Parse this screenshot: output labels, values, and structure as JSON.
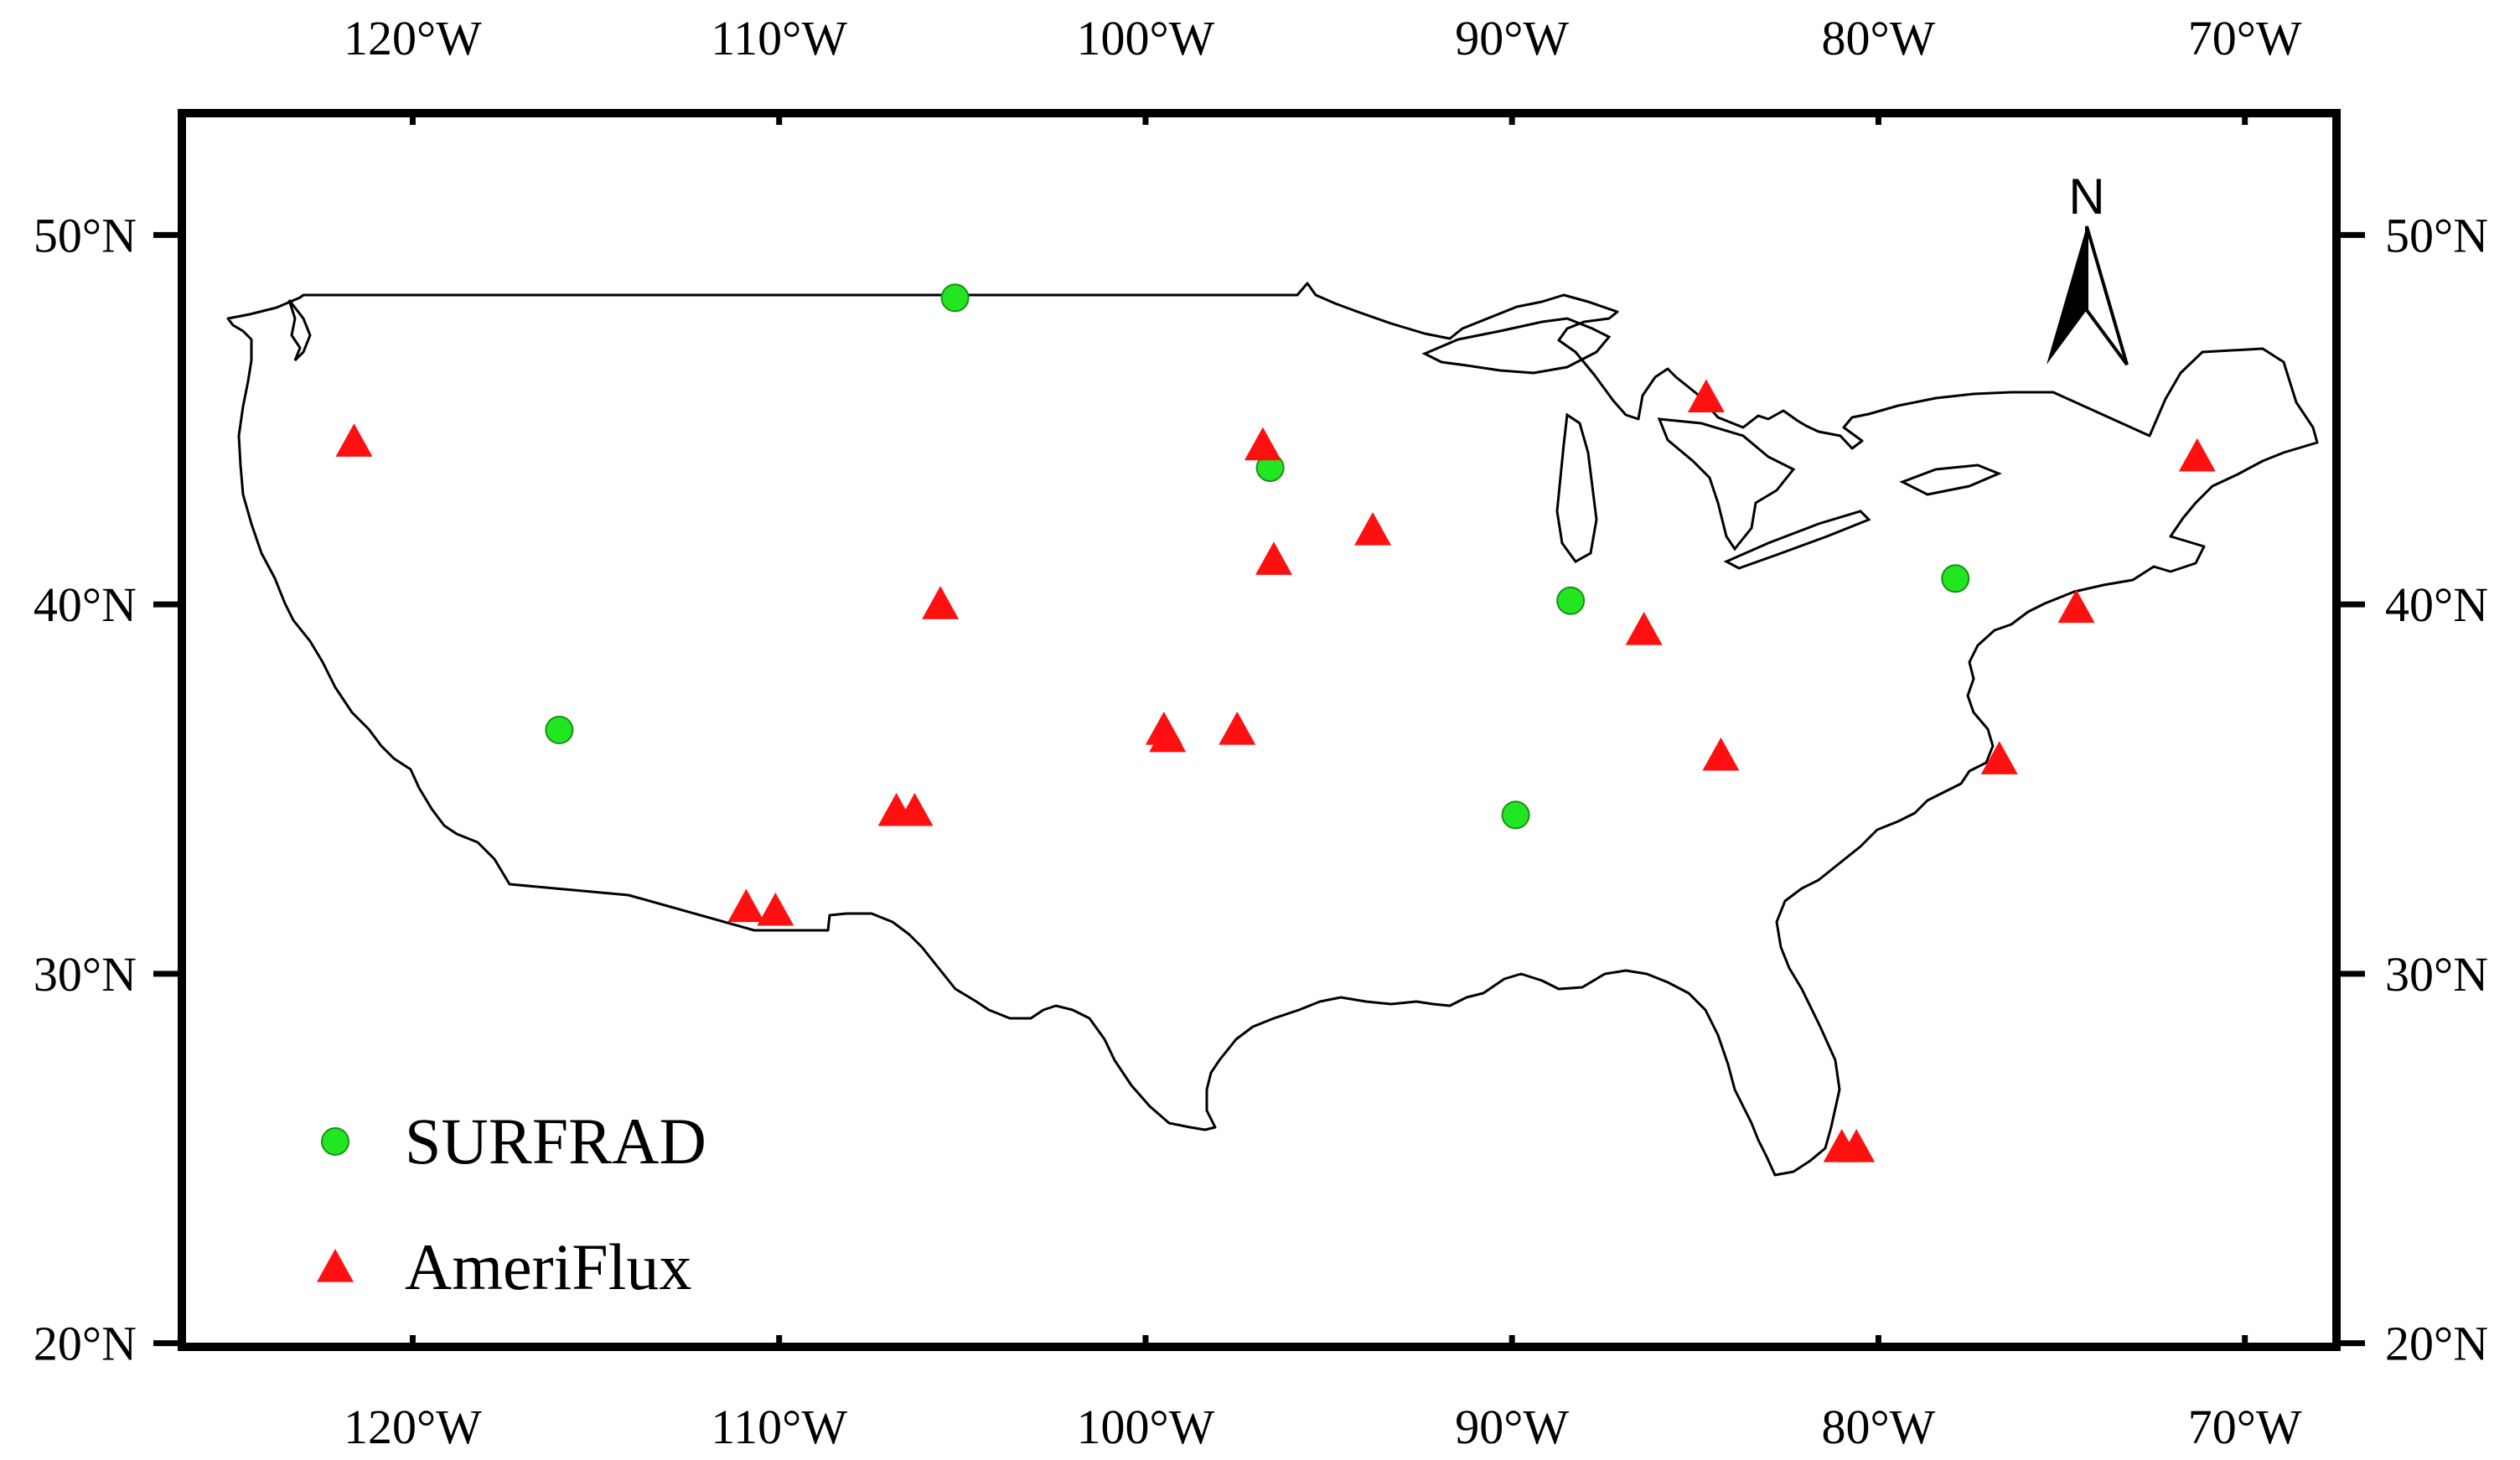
{
  "map": {
    "x_axis": {
      "ticks": [
        {
          "value": -120,
          "label": "120°W"
        },
        {
          "value": -110,
          "label": "110°W"
        },
        {
          "value": -100,
          "label": "100°W"
        },
        {
          "value": -90,
          "label": "90°W"
        },
        {
          "value": -80,
          "label": "80°W"
        },
        {
          "value": -70,
          "label": "70°W"
        }
      ]
    },
    "y_axis": {
      "ticks": [
        {
          "value": 50,
          "label": "50°N"
        },
        {
          "value": 40,
          "label": "40°N"
        },
        {
          "value": 30,
          "label": "30°N"
        },
        {
          "value": 20,
          "label": "20°N"
        }
      ]
    },
    "north_arrow": {
      "label": "N"
    },
    "legend": [
      {
        "label": "SURFRAD",
        "marker": "circle",
        "color": "#22e622"
      },
      {
        "label": "AmeriFlux",
        "marker": "triangle",
        "color": "#ff1010"
      }
    ]
  },
  "chart_data": {
    "type": "scatter",
    "xlim": [
      -126.3,
      -67.5
    ],
    "ylim": [
      19.9,
      53.3
    ],
    "series": [
      {
        "name": "SURFRAD",
        "marker": "circle",
        "color": "#22e622",
        "points": [
          {
            "lon": -105.2,
            "lat": 48.3
          },
          {
            "lon": -96.6,
            "lat": 43.7
          },
          {
            "lon": -116.0,
            "lat": 36.6
          },
          {
            "lon": -88.4,
            "lat": 40.1
          },
          {
            "lon": -89.9,
            "lat": 34.3
          },
          {
            "lon": -77.9,
            "lat": 40.7
          }
        ]
      },
      {
        "name": "AmeriFlux",
        "marker": "triangle",
        "color": "#ff1010",
        "points": [
          {
            "lon": -121.6,
            "lat": 44.4
          },
          {
            "lon": -96.8,
            "lat": 44.3
          },
          {
            "lon": -96.5,
            "lat": 41.2
          },
          {
            "lon": -93.8,
            "lat": 42.0
          },
          {
            "lon": -105.6,
            "lat": 40.0
          },
          {
            "lon": -84.7,
            "lat": 45.6
          },
          {
            "lon": -86.4,
            "lat": 39.3
          },
          {
            "lon": -84.3,
            "lat": 35.9
          },
          {
            "lon": -71.3,
            "lat": 44.0
          },
          {
            "lon": -74.6,
            "lat": 39.9
          },
          {
            "lon": -76.7,
            "lat": 35.8
          },
          {
            "lon": -99.5,
            "lat": 36.6
          },
          {
            "lon": -99.4,
            "lat": 36.4
          },
          {
            "lon": -97.5,
            "lat": 36.6
          },
          {
            "lon": -106.8,
            "lat": 34.4
          },
          {
            "lon": -106.3,
            "lat": 34.4
          },
          {
            "lon": -110.9,
            "lat": 31.8
          },
          {
            "lon": -110.1,
            "lat": 31.7
          },
          {
            "lon": -81.0,
            "lat": 25.3
          },
          {
            "lon": -80.6,
            "lat": 25.3
          }
        ]
      }
    ]
  }
}
